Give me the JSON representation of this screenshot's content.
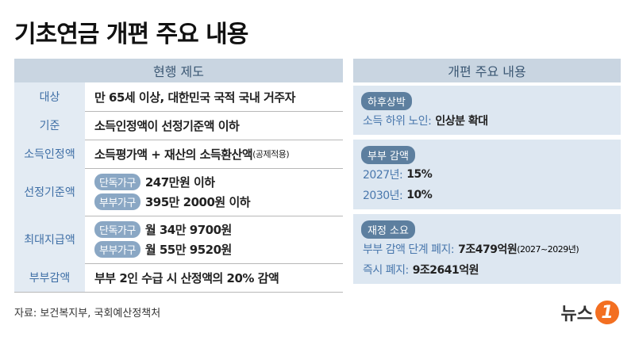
{
  "title": "기초연금 개편 주요 내용",
  "current": {
    "header": "현행 제도",
    "rows": [
      {
        "label": "대상",
        "lines": [
          {
            "text": "만 65세 이상, 대한민국 국적 국내 거주자"
          }
        ]
      },
      {
        "label": "기준",
        "lines": [
          {
            "text": "소득인정액이 선정기준액 이하"
          }
        ]
      },
      {
        "label": "소득인정액",
        "lines": [
          {
            "text": "소득평가액 + 재산의 소득환산액",
            "note": "(공제적용)"
          }
        ]
      },
      {
        "label": "선정기준액",
        "lines": [
          {
            "tag": "단독가구",
            "text": "247만원 이하"
          },
          {
            "tag": "부부가구",
            "text": "395만 2000원 이하"
          }
        ]
      },
      {
        "label": "최대지급액",
        "lines": [
          {
            "tag": "단독가구",
            "text": "월 34만 9700원"
          },
          {
            "tag": "부부가구",
            "text": "월 55만 9520원"
          }
        ]
      },
      {
        "label": "부부감액",
        "lines": [
          {
            "text": "부부 2인 수급 시 산정액의 20% 감액"
          }
        ]
      }
    ]
  },
  "reform": {
    "header": "개편 주요 내용",
    "sections": [
      {
        "tag": "하후상박",
        "lines": [
          {
            "label": "소득 하위 노인:",
            "text": "인상분 확대"
          }
        ]
      },
      {
        "tag": "부부 감액",
        "lines": [
          {
            "label": "2027년:",
            "text": "15%"
          },
          {
            "label": "2030년:",
            "text": "10%"
          }
        ]
      },
      {
        "tag": "재정 소요",
        "lines": [
          {
            "label": "부부 감액 단계 폐지:",
            "text": "7조479억원",
            "note": "(2027~2029년)"
          },
          {
            "label": "즉시 폐지:",
            "text": "9조2641억원"
          }
        ]
      }
    ]
  },
  "source": "자료: 보건복지부, 국회예산정책처",
  "logo": {
    "name": "뉴스",
    "mark": "1"
  }
}
